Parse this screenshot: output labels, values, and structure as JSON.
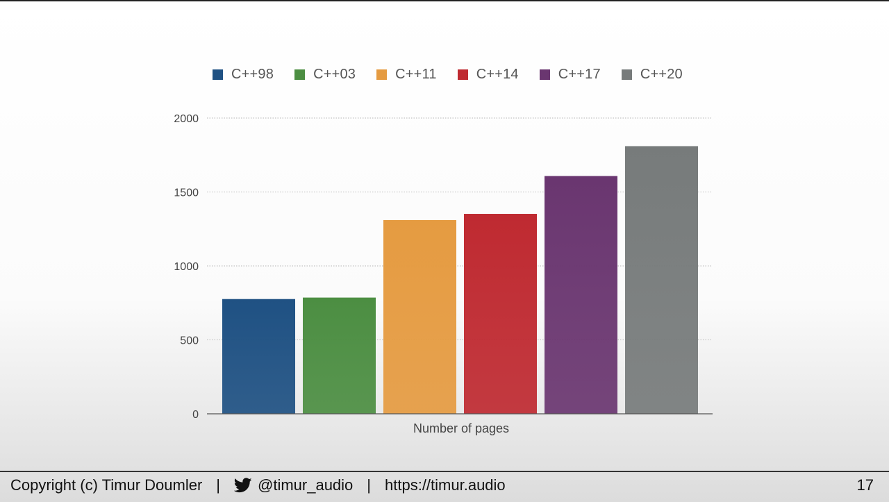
{
  "chart_data": {
    "type": "bar",
    "categories": [
      "Number of pages"
    ],
    "series": [
      {
        "name": "C++98",
        "color": "#1f5183",
        "values": [
          776
        ]
      },
      {
        "name": "C++03",
        "color": "#4c8e42",
        "values": [
          786
        ]
      },
      {
        "name": "C++11",
        "color": "#e59b41",
        "values": [
          1310
        ]
      },
      {
        "name": "C++14",
        "color": "#bf2a31",
        "values": [
          1352
        ]
      },
      {
        "name": "C++17",
        "color": "#6a3670",
        "values": [
          1608
        ]
      },
      {
        "name": "C++20",
        "color": "#777b7b",
        "values": [
          1810
        ]
      }
    ],
    "xlabel": "Number of pages",
    "ylabel": "",
    "ylim": [
      0,
      2000
    ],
    "yticks": [
      0,
      500,
      1000,
      1500,
      2000
    ],
    "grid": true,
    "legend_position": "top"
  },
  "footer": {
    "copyright": "Copyright (c) Timur Doumler",
    "separator": "|",
    "twitter_handle": "@timur_audio",
    "website": "https://timur.audio",
    "page_number": "17",
    "twitter_icon": "twitter-bird-icon"
  }
}
